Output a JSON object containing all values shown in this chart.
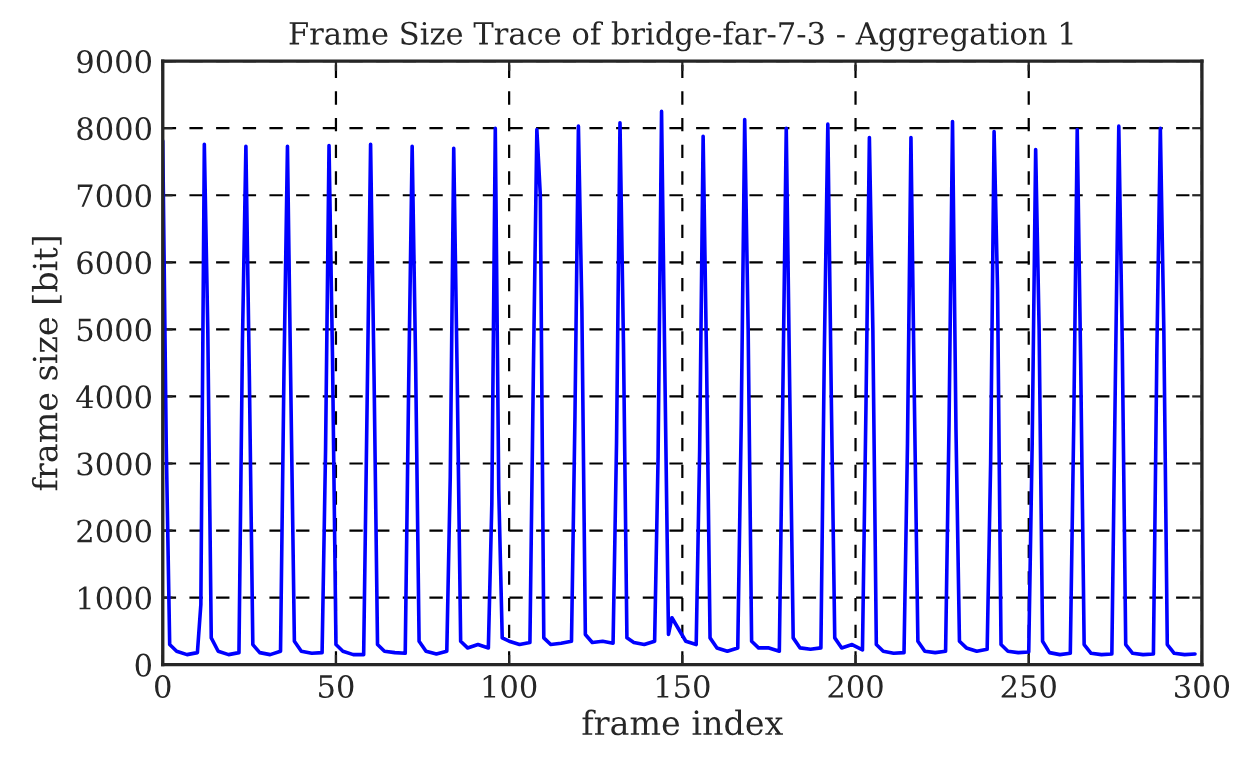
{
  "chart_data": {
    "type": "line",
    "title": "Frame Size Trace of bridge-far-7-3 - Aggregation 1",
    "xlabel": "frame index",
    "ylabel": "frame size [bit]",
    "x": [
      0,
      1,
      2,
      4,
      7,
      10,
      11,
      12,
      13,
      14,
      16,
      19,
      22,
      23,
      24,
      25,
      26,
      28,
      31,
      34,
      35,
      36,
      37,
      38,
      40,
      43,
      46,
      47,
      48,
      49,
      50,
      52,
      55,
      58,
      59,
      60,
      61,
      62,
      64,
      67,
      70,
      71,
      72,
      73,
      74,
      76,
      79,
      82,
      83,
      84,
      85,
      86,
      88,
      91,
      94,
      95,
      96,
      97,
      98,
      100,
      103,
      106,
      107,
      108,
      109,
      110,
      112,
      115,
      118,
      119,
      120,
      121,
      122,
      124,
      127,
      130,
      131,
      132,
      133,
      134,
      136,
      139,
      142,
      143,
      144,
      145,
      146,
      147,
      151,
      154,
      155,
      156,
      157,
      158,
      160,
      163,
      166,
      167,
      168,
      169,
      170,
      172,
      175,
      178,
      179,
      180,
      181,
      182,
      184,
      187,
      190,
      191,
      192,
      193,
      194,
      196,
      199,
      202,
      203,
      204,
      205,
      206,
      208,
      211,
      214,
      215,
      216,
      217,
      218,
      220,
      223,
      226,
      227,
      228,
      229,
      230,
      232,
      235,
      238,
      239,
      240,
      241,
      242,
      244,
      247,
      250,
      251,
      252,
      253,
      254,
      256,
      259,
      262,
      263,
      264,
      265,
      266,
      268,
      271,
      274,
      275,
      276,
      277,
      278,
      280,
      283,
      286,
      287,
      288,
      289,
      290,
      292,
      295,
      298
    ],
    "series": [
      {
        "color": "#0000ff",
        "values": [
          7810,
          3300,
          300,
          200,
          150,
          180,
          900,
          7760,
          5000,
          400,
          200,
          150,
          180,
          4800,
          7730,
          4300,
          300,
          180,
          150,
          200,
          4400,
          7730,
          4000,
          350,
          200,
          170,
          180,
          3200,
          7740,
          4600,
          300,
          200,
          150,
          150,
          3900,
          7760,
          4300,
          300,
          200,
          180,
          170,
          4200,
          7730,
          4500,
          350,
          200,
          160,
          200,
          2800,
          7700,
          4300,
          350,
          250,
          300,
          250,
          2400,
          8000,
          2600,
          400,
          350,
          300,
          330,
          4400,
          7980,
          7000,
          400,
          300,
          320,
          350,
          3700,
          8030,
          5300,
          450,
          330,
          350,
          320,
          3300,
          8080,
          4800,
          400,
          330,
          300,
          350,
          3100,
          8250,
          4200,
          450,
          700,
          350,
          300,
          3200,
          7880,
          4500,
          400,
          250,
          200,
          250,
          3600,
          8130,
          5000,
          350,
          250,
          250,
          200,
          4000,
          8000,
          4100,
          400,
          250,
          230,
          250,
          4700,
          8060,
          4000,
          400,
          250,
          300,
          220,
          3800,
          7860,
          5000,
          300,
          200,
          170,
          180,
          3300,
          7860,
          3900,
          350,
          200,
          180,
          200,
          3600,
          8100,
          3500,
          350,
          250,
          200,
          230,
          3000,
          7950,
          5600,
          300,
          200,
          180,
          190,
          3300,
          7680,
          5000,
          350,
          180,
          150,
          170,
          3600,
          7980,
          4500,
          300,
          170,
          150,
          160,
          4200,
          8030,
          4800,
          300,
          170,
          150,
          160,
          4700,
          8000,
          5000,
          300,
          170,
          150,
          160
        ]
      }
    ],
    "xlim": [
      0,
      300
    ],
    "ylim": [
      0,
      9000
    ],
    "xticks": [
      0,
      50,
      100,
      150,
      200,
      250,
      300
    ],
    "yticks": [
      0,
      1000,
      2000,
      3000,
      4000,
      5000,
      6000,
      7000,
      8000,
      9000
    ],
    "grid": true,
    "line_style": "solid"
  }
}
